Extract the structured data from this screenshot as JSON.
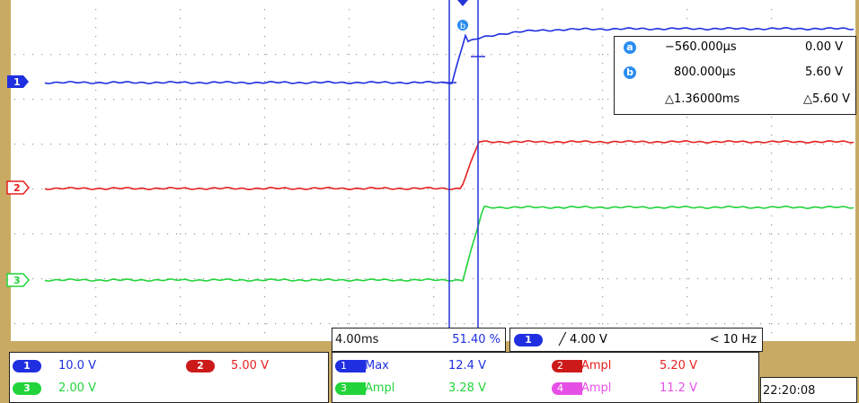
{
  "colors": {
    "bezel": "#c8aa63",
    "grid_dot": "#9a9a9a",
    "ch1": "#1f2fe0",
    "ch2": "#e52020",
    "ch3": "#22d43a",
    "ch4": "#e64fe6",
    "cursor": "#2536d8",
    "text_dark": "#111111"
  },
  "cursors": {
    "a": {
      "icon": "a-circle-icon",
      "time": "−560.000µs",
      "volt": "0.00 V"
    },
    "b": {
      "icon": "b-circle-icon",
      "time": "800.000µs",
      "volt": "5.60 V"
    },
    "delta": {
      "time": "△1.36000ms",
      "volt": "△5.60 V"
    },
    "marker_label": "b"
  },
  "channels": [
    {
      "id": "1",
      "scale": "10.0 V"
    },
    {
      "id": "2",
      "scale": "5.00 V"
    },
    {
      "id": "3",
      "scale": "2.00 V"
    }
  ],
  "timebase": {
    "per_div": "4.00ms",
    "position": "51.40 %"
  },
  "trigger": {
    "channel": "1",
    "slope_icon": "rising-edge-icon",
    "level": "╱ 4.00 V",
    "freq": "< 10 Hz"
  },
  "measurements": [
    {
      "channel": "1",
      "name": "Max",
      "value": "12.4 V"
    },
    {
      "channel": "2",
      "name": "Ampl",
      "value": "5.20 V"
    },
    {
      "channel": "3",
      "name": "Ampl",
      "value": "3.28 V"
    },
    {
      "channel": "4",
      "name": "Ampl",
      "value": "11.2 V"
    }
  ],
  "clock": "22:20:08"
}
